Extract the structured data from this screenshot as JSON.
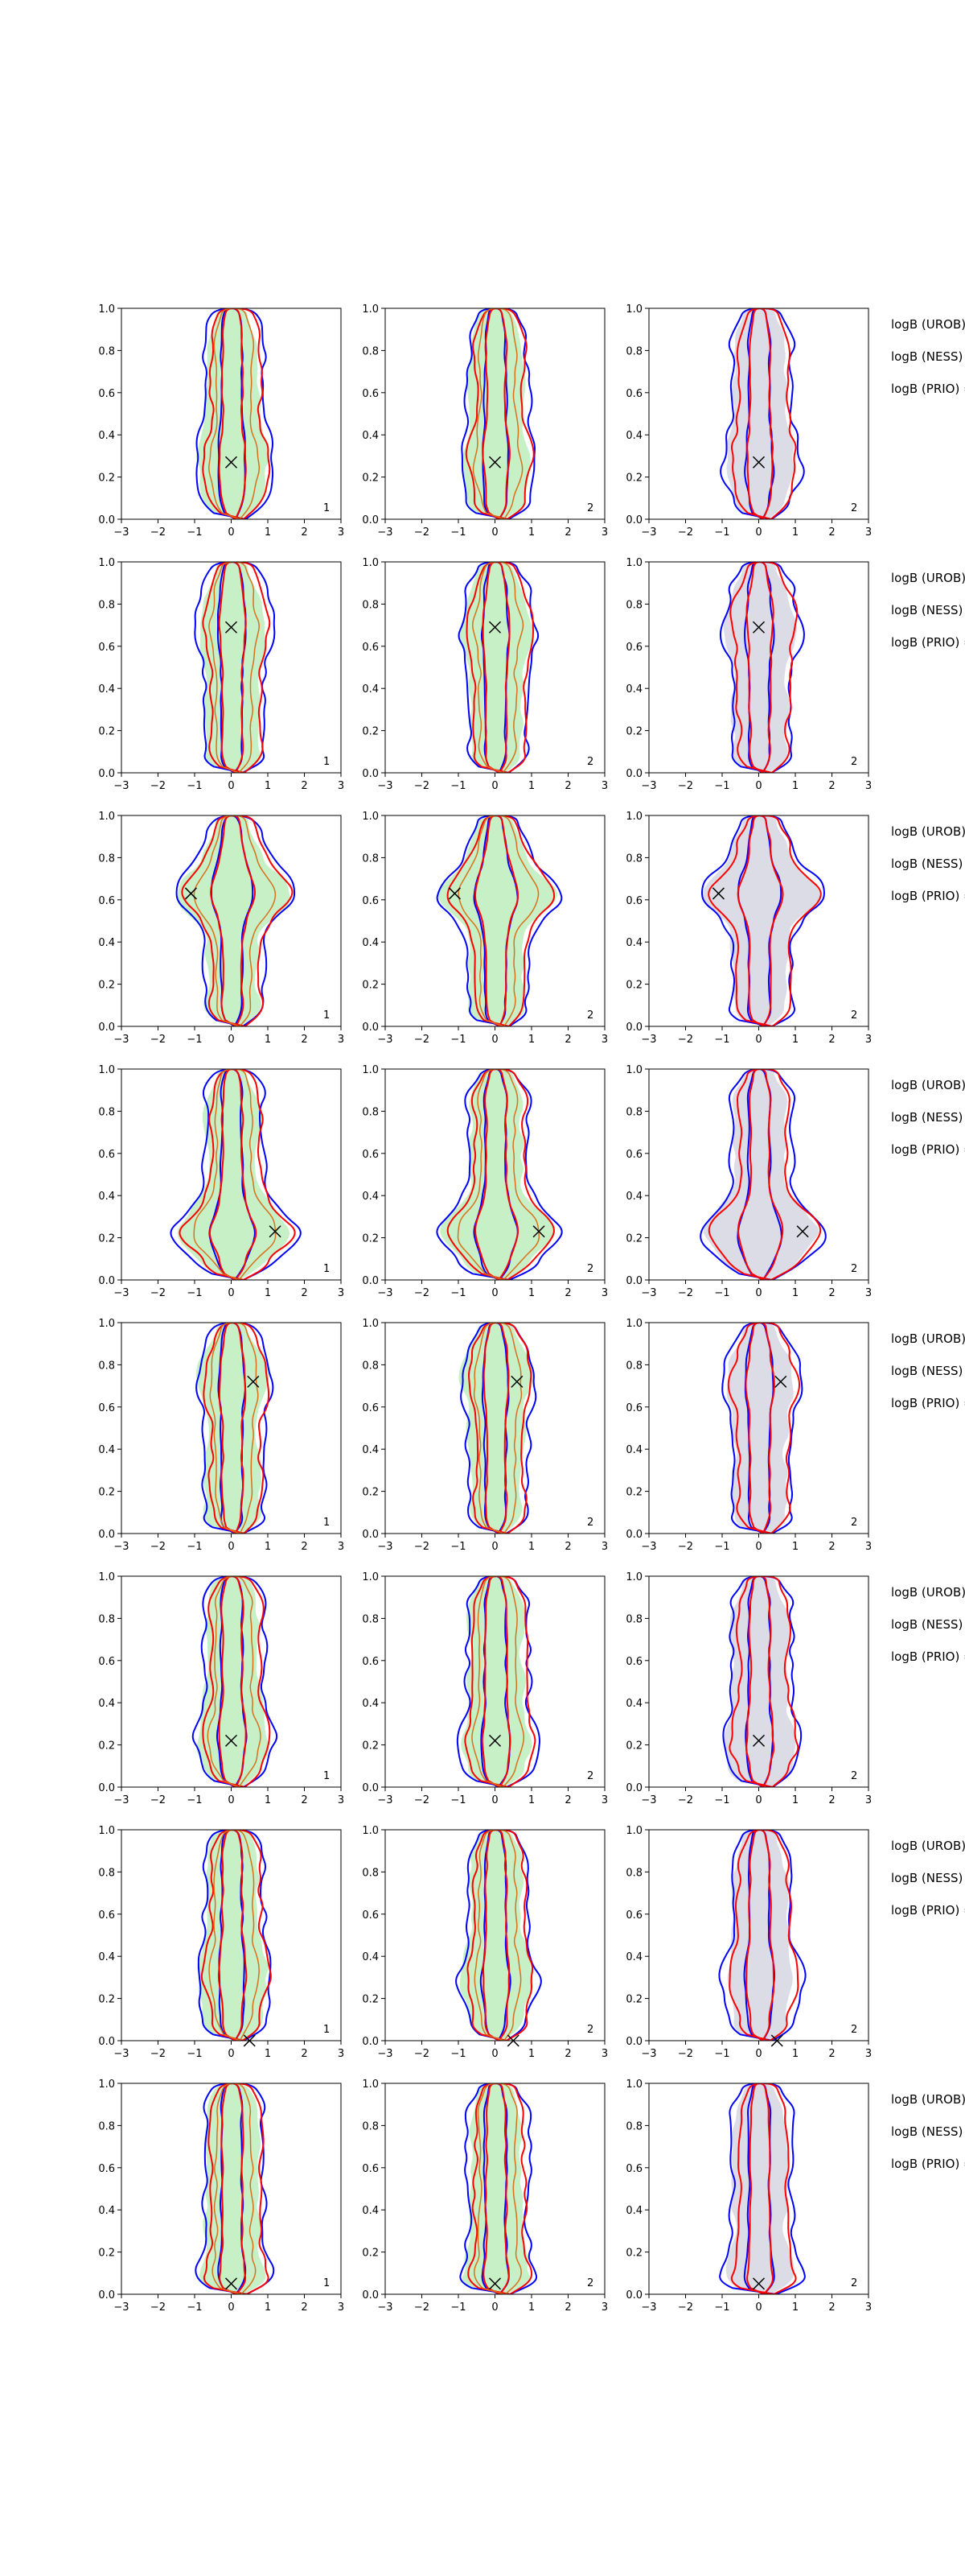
{
  "chart_data": {
    "type": "contour-grid",
    "title": "",
    "rows": 8,
    "columns": 3,
    "xlim": [
      -3,
      3
    ],
    "ylim": [
      0,
      1
    ],
    "xticks": [
      "−3",
      "−2",
      "−1",
      "0",
      "1",
      "2",
      "3"
    ],
    "yticks": [
      "0.0",
      "0.2",
      "0.4",
      "0.6",
      "0.8",
      "1.0"
    ],
    "grid": false,
    "panel_labels": [
      "1",
      "2",
      "2"
    ],
    "side_labels": [
      "logB (UROB) =",
      "logB (NESS) =",
      "logB (PRIO) ="
    ],
    "colors": {
      "fill_col1": "#c7f0c7",
      "fill_col2": "#c7f0c7",
      "fill_col3": "#dcdce6",
      "line_blue": "#0000ff",
      "line_red": "#ff0000",
      "line_orange": "#d9701c",
      "marker": "#000000"
    },
    "true_points": [
      {
        "x": 0.0,
        "y": 0.27
      },
      {
        "x": 0.0,
        "y": 0.69
      },
      {
        "x": -1.1,
        "y": 0.63
      },
      {
        "x": 1.2,
        "y": 0.23
      },
      {
        "x": 0.6,
        "y": 0.72
      },
      {
        "x": 0.0,
        "y": 0.22
      },
      {
        "x": 0.5,
        "y": 0.0
      },
      {
        "x": 0.0,
        "y": 0.05
      }
    ]
  }
}
